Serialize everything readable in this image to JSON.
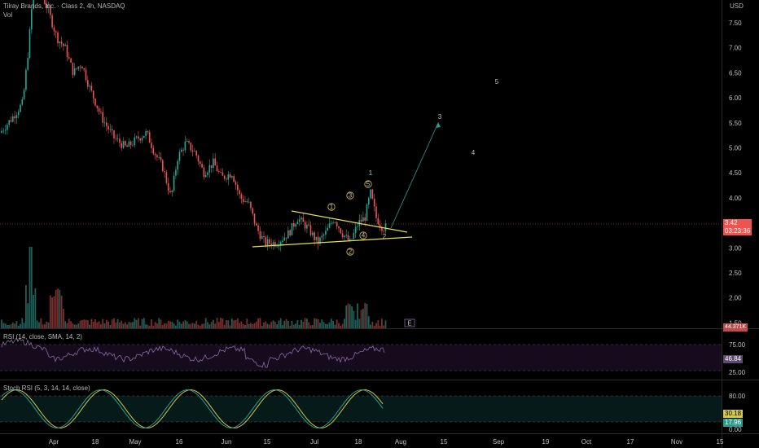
{
  "header": {
    "title": "Tilray Brands, Inc. · Class 2, 4h, NASDAQ",
    "vol_label": "Vol",
    "currency": "USD"
  },
  "price_axis": {
    "labels": [
      "7.50",
      "7.00",
      "6.50",
      "6.00",
      "5.50",
      "5.00",
      "4.50",
      "4.00",
      "3.50",
      "3.00",
      "2.50",
      "2.00",
      "1.50"
    ],
    "current_price": "3.42",
    "countdown": "03:23:36",
    "volume_tag": "44.371K"
  },
  "time_axis": {
    "labels": [
      "Apr",
      "18",
      "May",
      "16",
      "Jun",
      "15",
      "Jul",
      "18",
      "Aug",
      "15",
      "Sep",
      "19",
      "Oct",
      "17",
      "Nov",
      "15"
    ]
  },
  "wave_labels": {
    "main": [
      "1",
      "2",
      "3",
      "4",
      "5"
    ],
    "sub": [
      "1",
      "2",
      "3",
      "4",
      "5"
    ]
  },
  "earnings_marker": "E",
  "rsi": {
    "legend": "RSI (14, close, SMA, 14, 2)",
    "levels": [
      "75.00",
      "25.00"
    ],
    "value": "46.84"
  },
  "stoch": {
    "legend": "Stoch RSI (5, 3, 14, 14, close)",
    "levels": [
      "80.00",
      "0.00"
    ],
    "k_value": "30.18",
    "d_value": "17.96"
  },
  "colors": {
    "up": "#26a69a",
    "down": "#ef5350",
    "trendline": "#e6e14a",
    "wave": "#3fd6c0",
    "rsi_line": "#8a6aa0",
    "stoch_k": "#2e9c8c",
    "stoch_d": "#d2c84a"
  }
}
